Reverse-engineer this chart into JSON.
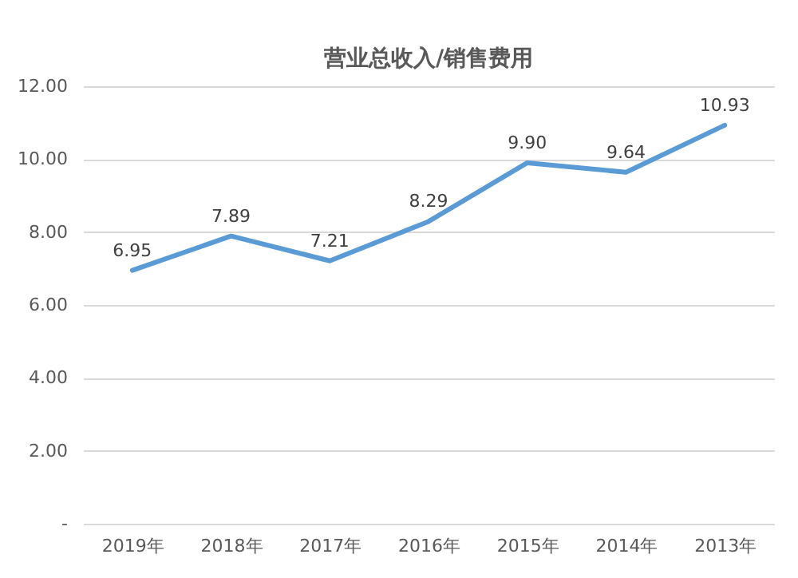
{
  "chart_data": {
    "type": "line",
    "title": "营业总收入/销售费用",
    "categories": [
      "2019年",
      "2018年",
      "2017年",
      "2016年",
      "2015年",
      "2014年",
      "2013年"
    ],
    "series": [
      {
        "color": "#5b9bd5",
        "values": [
          6.95,
          7.89,
          7.21,
          8.29,
          9.9,
          9.64,
          10.93
        ]
      }
    ],
    "value_labels": [
      "6.95",
      "7.89",
      "7.21",
      "8.29",
      "9.90",
      "9.64",
      "10.93"
    ],
    "ylim": [
      0,
      12
    ],
    "yticks": [
      {
        "value": 0,
        "label": "-"
      },
      {
        "value": 2,
        "label": "2.00"
      },
      {
        "value": 4,
        "label": "4.00"
      },
      {
        "value": 6,
        "label": "6.00"
      },
      {
        "value": 8,
        "label": "8.00"
      },
      {
        "value": 10,
        "label": "10.00"
      },
      {
        "value": 12,
        "label": "12.00"
      }
    ],
    "grid": "y",
    "marker": "none",
    "line_style": "solid",
    "legend": false
  }
}
